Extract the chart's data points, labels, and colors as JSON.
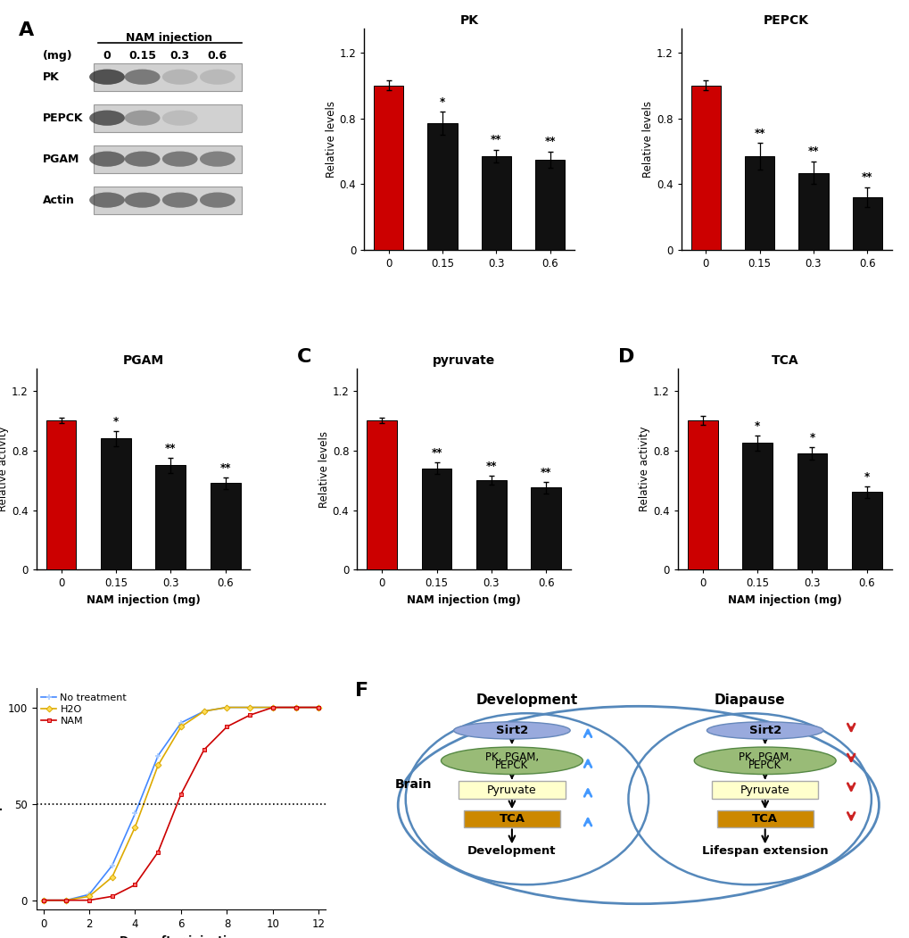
{
  "bar_categories": [
    "0",
    "0.15",
    "0.3",
    "0.6"
  ],
  "PK_values": [
    1.0,
    0.77,
    0.57,
    0.55
  ],
  "PK_errors": [
    0.03,
    0.07,
    0.04,
    0.05
  ],
  "PK_stars": [
    "",
    "*",
    "**",
    "**"
  ],
  "PEPCK_values": [
    1.0,
    0.57,
    0.47,
    0.32
  ],
  "PEPCK_errors": [
    0.03,
    0.08,
    0.07,
    0.06
  ],
  "PEPCK_stars": [
    "",
    "**",
    "**",
    "**"
  ],
  "PGAM_values": [
    1.0,
    0.88,
    0.7,
    0.58
  ],
  "PGAM_errors": [
    0.02,
    0.05,
    0.05,
    0.04
  ],
  "PGAM_stars": [
    "",
    "*",
    "**",
    "**"
  ],
  "pyruvate_values": [
    1.0,
    0.68,
    0.6,
    0.55
  ],
  "pyruvate_errors": [
    0.02,
    0.04,
    0.03,
    0.04
  ],
  "pyruvate_stars": [
    "",
    "**",
    "**",
    "**"
  ],
  "TCA_values": [
    1.0,
    0.85,
    0.78,
    0.52
  ],
  "TCA_errors": [
    0.03,
    0.05,
    0.04,
    0.04
  ],
  "TCA_stars": [
    "",
    "*",
    "*",
    "*"
  ],
  "bar_color_first": "#cc0000",
  "bar_color_rest": "#111111",
  "ylim": [
    0,
    1.35
  ],
  "yticks": [
    0,
    0.4,
    0.8,
    1.2
  ],
  "xlabel": "NAM injection (mg)",
  "E_no_treatment_x": [
    0,
    1,
    2,
    3,
    4,
    5,
    6,
    7,
    8,
    9,
    10,
    11,
    12
  ],
  "E_no_treatment_y": [
    0,
    0,
    3,
    18,
    45,
    75,
    92,
    98,
    100,
    100,
    100,
    100,
    100
  ],
  "E_h2o_x": [
    0,
    1,
    2,
    3,
    4,
    5,
    6,
    7,
    8,
    9,
    10,
    11,
    12
  ],
  "E_h2o_y": [
    0,
    0,
    2,
    12,
    38,
    70,
    90,
    98,
    100,
    100,
    100,
    100,
    100
  ],
  "E_nam_x": [
    0,
    1,
    2,
    3,
    4,
    5,
    6,
    7,
    8,
    9,
    10,
    11,
    12
  ],
  "E_nam_y": [
    0,
    0,
    0,
    2,
    8,
    25,
    55,
    78,
    90,
    96,
    100,
    100,
    100
  ],
  "western_bg": 0.82,
  "western_bands_PK": [
    0.92,
    0.75,
    0.45,
    0.42
  ],
  "western_bands_PEPCK": [
    0.88,
    0.6,
    0.4,
    0.18
  ],
  "western_bands_PGAM": [
    0.82,
    0.78,
    0.75,
    0.72
  ],
  "western_bands_Actin": [
    0.8,
    0.78,
    0.76,
    0.75
  ]
}
